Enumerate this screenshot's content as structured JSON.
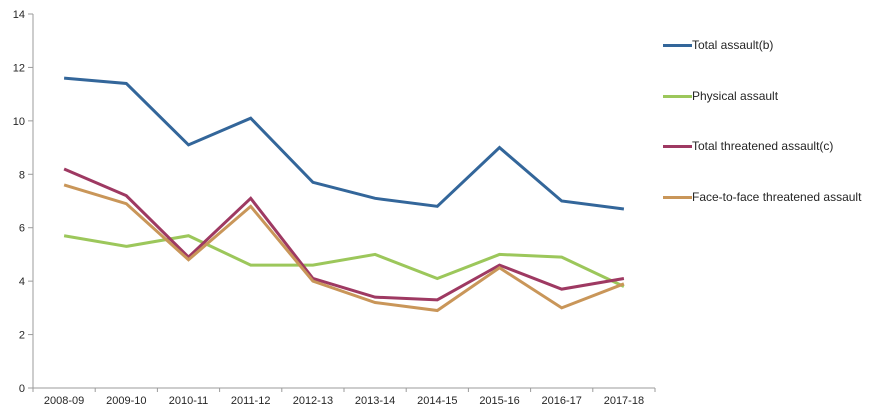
{
  "chart_data": {
    "type": "line",
    "title": "",
    "xlabel": "",
    "ylabel": "",
    "categories": [
      "2008-09",
      "2009-10",
      "2010-11",
      "2011-12",
      "2012-13",
      "2013-14",
      "2014-15",
      "2015-16",
      "2016-17",
      "2017-18"
    ],
    "series": [
      {
        "name": "Total assault(b)",
        "color": "#33669A",
        "values": [
          11.6,
          11.4,
          9.1,
          10.1,
          7.7,
          7.1,
          6.8,
          9.0,
          7.0,
          6.7
        ]
      },
      {
        "name": "Physical assault",
        "color": "#9CC75B",
        "values": [
          5.7,
          5.3,
          5.7,
          4.6,
          4.6,
          5.0,
          4.1,
          5.0,
          4.9,
          3.8
        ]
      },
      {
        "name": "Total threatened assault(c)",
        "color": "#9E3962",
        "values": [
          8.2,
          7.2,
          4.9,
          7.1,
          4.1,
          3.4,
          3.3,
          4.6,
          3.7,
          4.1
        ]
      },
      {
        "name": "Face-to-face threatened assault",
        "color": "#C99659",
        "values": [
          7.6,
          6.9,
          4.8,
          6.8,
          4.0,
          3.2,
          2.9,
          4.5,
          3.0,
          3.9
        ]
      }
    ],
    "ylim": [
      0,
      14
    ],
    "yticks": [
      0,
      2,
      4,
      6,
      8,
      10,
      12,
      14
    ],
    "grid": false,
    "legend_position": "right"
  },
  "style": {
    "background": "#ffffff",
    "axis_color": "#9B9B9B",
    "tick_label_color": "#262626",
    "legend_text_color": "#262626",
    "line_width": 3
  }
}
